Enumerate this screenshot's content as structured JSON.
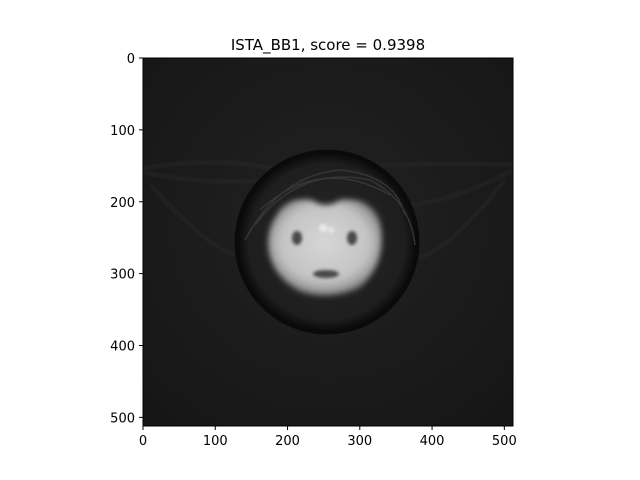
{
  "figure": {
    "title": "ISTA_BB1, score = 0.9398"
  },
  "image_panel": {
    "x_ticks": [
      "0",
      "100",
      "200",
      "300",
      "400",
      "500"
    ],
    "y_ticks": [
      "0",
      "100",
      "200",
      "300",
      "400",
      "500"
    ],
    "x_tick_values": [
      0,
      100,
      200,
      300,
      400,
      500
    ],
    "y_tick_values": [
      0,
      100,
      200,
      300,
      400,
      500
    ],
    "xlim": [
      0,
      512
    ],
    "ylim": [
      512,
      0
    ],
    "colormap": "gray",
    "colors": {
      "background": "#1a1a1a",
      "phantom_rim": "#0c0c0c",
      "phantom_fill": "#202020",
      "object_fill": "#c8c8c8",
      "axis": "#000000"
    }
  }
}
